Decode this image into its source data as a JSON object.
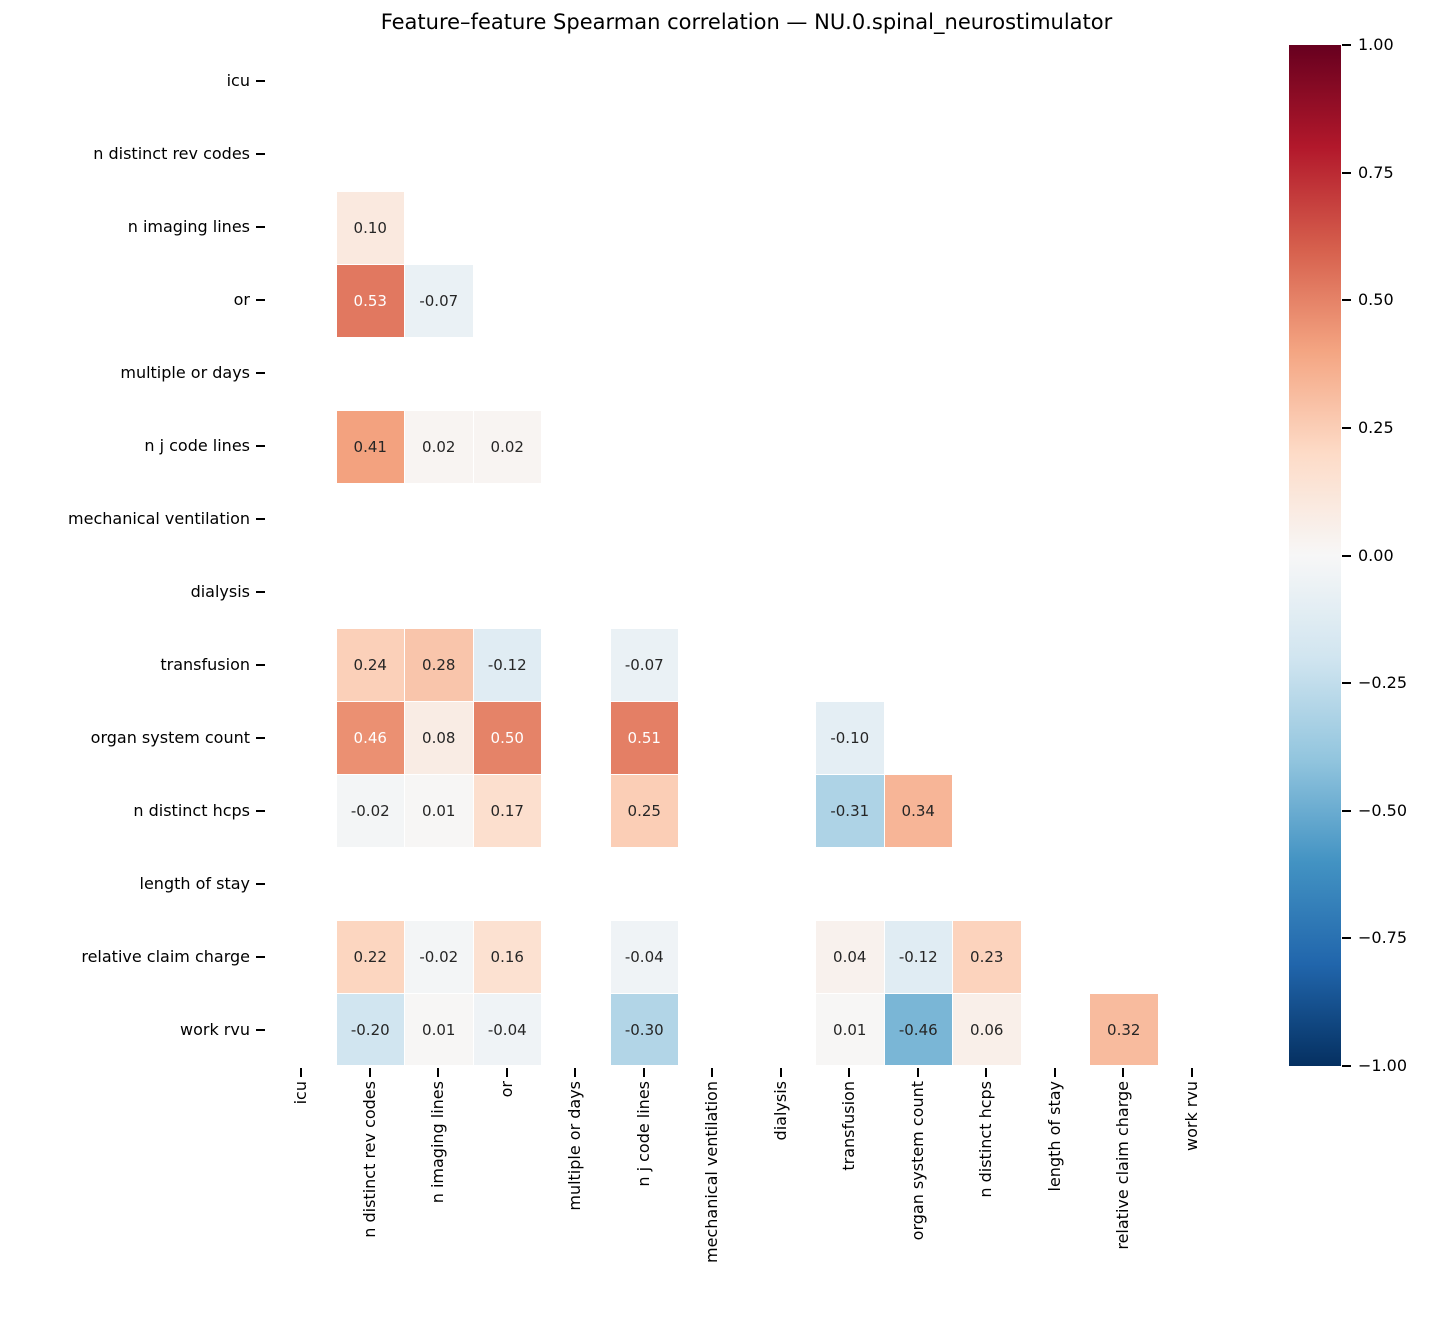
{
  "title": "Feature–feature Spearman correlation — NU.0.spinal_neurostimulator",
  "chart_data": {
    "type": "heatmap",
    "title": "Feature–feature Spearman correlation — NU.0.spinal_neurostimulator",
    "labels": [
      "icu",
      "n distinct rev codes",
      "n imaging lines",
      "or",
      "multiple or days",
      "n j code lines",
      "mechanical ventilation",
      "dialysis",
      "transfusion",
      "organ system count",
      "n distinct hcps",
      "length of stay",
      "relative claim charge",
      "work rvu"
    ],
    "matrix": [
      [
        null,
        null,
        null,
        null,
        null,
        null,
        null,
        null,
        null,
        null,
        null,
        null,
        null,
        null
      ],
      [
        null,
        null,
        null,
        null,
        null,
        null,
        null,
        null,
        null,
        null,
        null,
        null,
        null,
        null
      ],
      [
        null,
        0.1,
        null,
        null,
        null,
        null,
        null,
        null,
        null,
        null,
        null,
        null,
        null,
        null
      ],
      [
        null,
        0.53,
        -0.07,
        null,
        null,
        null,
        null,
        null,
        null,
        null,
        null,
        null,
        null,
        null
      ],
      [
        null,
        null,
        null,
        null,
        null,
        null,
        null,
        null,
        null,
        null,
        null,
        null,
        null,
        null
      ],
      [
        null,
        0.41,
        0.02,
        0.02,
        null,
        null,
        null,
        null,
        null,
        null,
        null,
        null,
        null,
        null
      ],
      [
        null,
        null,
        null,
        null,
        null,
        null,
        null,
        null,
        null,
        null,
        null,
        null,
        null,
        null
      ],
      [
        null,
        null,
        null,
        null,
        null,
        null,
        null,
        null,
        null,
        null,
        null,
        null,
        null,
        null
      ],
      [
        null,
        0.24,
        0.28,
        -0.12,
        null,
        -0.07,
        null,
        null,
        null,
        null,
        null,
        null,
        null,
        null
      ],
      [
        null,
        0.46,
        0.08,
        0.5,
        null,
        0.51,
        null,
        null,
        -0.1,
        null,
        null,
        null,
        null,
        null
      ],
      [
        null,
        -0.02,
        0.01,
        0.17,
        null,
        0.25,
        null,
        null,
        -0.31,
        0.34,
        null,
        null,
        null,
        null
      ],
      [
        null,
        null,
        null,
        null,
        null,
        null,
        null,
        null,
        null,
        null,
        null,
        null,
        null,
        null
      ],
      [
        null,
        0.22,
        -0.02,
        0.16,
        null,
        -0.04,
        null,
        null,
        0.04,
        -0.12,
        0.23,
        null,
        null,
        null
      ],
      [
        null,
        -0.2,
        0.01,
        -0.04,
        null,
        -0.3,
        null,
        null,
        0.01,
        -0.46,
        0.06,
        null,
        0.32,
        null
      ]
    ],
    "value_format_decimals": 2,
    "vmin": -1,
    "vmax": 1,
    "grid": false,
    "legend_position": "right-colorbar",
    "colormap": {
      "name": "RdBu_r",
      "anchors_low_to_high": [
        "#053061",
        "#2166ac",
        "#4393c3",
        "#92c5de",
        "#d1e5f0",
        "#f7f7f7",
        "#fddbc7",
        "#f4a582",
        "#d6604d",
        "#b2182b",
        "#67001f"
      ],
      "dark_text_color": "#262626",
      "light_text_color": "#ffffff"
    },
    "colorbar": {
      "ticks": [
        {
          "value": 1.0,
          "label": "1.00"
        },
        {
          "value": 0.75,
          "label": "0.75"
        },
        {
          "value": 0.5,
          "label": "0.50"
        },
        {
          "value": 0.25,
          "label": "0.25"
        },
        {
          "value": 0.0,
          "label": "0.00"
        },
        {
          "value": -0.25,
          "label": "−0.25"
        },
        {
          "value": -0.5,
          "label": "−0.50"
        },
        {
          "value": -0.75,
          "label": "−0.75"
        },
        {
          "value": -1.0,
          "label": "−1.00"
        }
      ]
    }
  }
}
